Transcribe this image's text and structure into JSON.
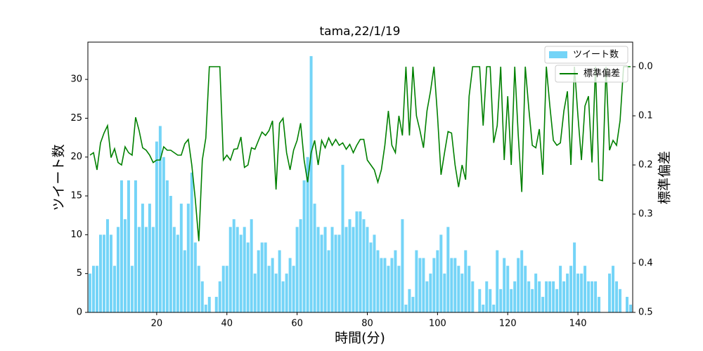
{
  "chart_data": {
    "type": "bar",
    "title": "tama,22/1/19",
    "xlabel": "時間(分)",
    "ylabel": "ツイート数",
    "y2label": "標準偏差",
    "x": [
      1,
      2,
      3,
      4,
      5,
      6,
      7,
      8,
      9,
      10,
      11,
      12,
      13,
      14,
      15,
      16,
      17,
      18,
      19,
      20,
      21,
      22,
      23,
      24,
      25,
      26,
      27,
      28,
      29,
      30,
      31,
      32,
      33,
      34,
      35,
      36,
      37,
      38,
      39,
      40,
      41,
      42,
      43,
      44,
      45,
      46,
      47,
      48,
      49,
      50,
      51,
      52,
      53,
      54,
      55,
      56,
      57,
      58,
      59,
      60,
      61,
      62,
      63,
      64,
      65,
      66,
      67,
      68,
      69,
      70,
      71,
      72,
      73,
      74,
      75,
      76,
      77,
      78,
      79,
      80,
      81,
      82,
      83,
      84,
      85,
      86,
      87,
      88,
      89,
      90,
      91,
      92,
      93,
      94,
      95,
      96,
      97,
      98,
      99,
      100,
      101,
      102,
      103,
      104,
      105,
      106,
      107,
      108,
      109,
      110,
      111,
      112,
      113,
      114,
      115,
      116,
      117,
      118,
      119,
      120,
      121,
      122,
      123,
      124,
      125,
      126,
      127,
      128,
      129,
      130,
      131,
      132,
      133,
      134,
      135,
      136,
      137,
      138,
      139,
      140,
      141,
      142,
      143,
      144,
      145,
      146,
      147,
      148,
      149,
      150,
      151,
      152,
      153,
      154,
      155
    ],
    "series": [
      {
        "name": "ツイート数",
        "type": "bar",
        "color": "#74d4f7",
        "values": [
          5,
          6,
          6,
          10,
          10,
          12,
          10,
          6,
          11,
          17,
          12,
          17,
          6,
          17,
          11,
          14,
          11,
          14,
          11,
          22,
          24,
          20,
          17,
          15,
          11,
          10,
          14,
          8,
          14,
          18,
          9,
          6,
          4,
          1,
          2,
          0,
          2,
          4,
          6,
          6,
          11,
          12,
          11,
          10,
          11,
          9,
          12,
          5,
          8,
          9,
          9,
          6,
          7,
          5,
          8,
          4,
          5,
          7,
          6,
          11,
          12,
          17,
          20,
          33,
          14,
          11,
          10,
          11,
          8,
          11,
          10,
          10,
          19,
          11,
          12,
          11,
          13,
          13,
          12,
          11,
          9,
          10,
          8,
          7,
          7,
          6,
          7,
          8,
          6,
          12,
          1,
          3,
          2,
          8,
          7,
          7,
          4,
          5,
          7,
          8,
          10,
          5,
          11,
          7,
          7,
          6,
          5,
          8,
          6,
          4,
          0,
          3,
          1,
          4,
          3,
          1,
          8,
          3,
          7,
          6,
          3,
          4,
          7,
          8,
          6,
          4,
          3,
          5,
          4,
          2,
          4,
          4,
          4,
          3,
          6,
          4,
          5,
          6,
          9,
          5,
          5,
          6,
          4,
          4,
          4,
          2,
          0,
          0,
          5,
          6,
          4,
          3,
          0,
          2,
          1
        ]
      },
      {
        "name": "標準偏差",
        "type": "line",
        "axis": "y2",
        "color": "#008000",
        "values": [
          0.18,
          0.175,
          0.21,
          0.155,
          0.135,
          0.12,
          0.185,
          0.167,
          0.195,
          0.2,
          0.163,
          0.175,
          0.18,
          0.103,
          0.13,
          0.165,
          0.17,
          0.18,
          0.195,
          0.19,
          0.19,
          0.163,
          0.17,
          0.17,
          0.175,
          0.18,
          0.18,
          0.157,
          0.148,
          0.2,
          0.27,
          0.355,
          0.19,
          0.145,
          0,
          0,
          0,
          0,
          0.19,
          0.18,
          0.19,
          0.168,
          0.167,
          0.143,
          0.205,
          0.2,
          0.165,
          0.168,
          0.15,
          0.133,
          0.14,
          0.13,
          0.11,
          0.25,
          0.115,
          0.105,
          0.175,
          0.21,
          0.17,
          0.15,
          0.115,
          0.19,
          0.235,
          0.175,
          0.15,
          0.2,
          0.15,
          0.165,
          0.145,
          0.16,
          0.148,
          0.16,
          0.155,
          0.168,
          0.158,
          0.175,
          0.16,
          0.148,
          0.148,
          0.19,
          0.2,
          0.21,
          0.235,
          0.21,
          0.16,
          0.09,
          0.16,
          0.175,
          0.1,
          0.14,
          0,
          0.14,
          0,
          0.1,
          0.13,
          0.165,
          0.09,
          0.05,
          0,
          0.1,
          0.22,
          0.175,
          0.132,
          0.135,
          0.2,
          0.245,
          0.2,
          0.23,
          0.06,
          0,
          0,
          0,
          0.12,
          0,
          0,
          0.155,
          0.12,
          0,
          0.19,
          0.06,
          0.2,
          0,
          0.14,
          0.255,
          0,
          0.085,
          0.16,
          0.165,
          0.127,
          0.22,
          0,
          0.08,
          0.15,
          0.16,
          0.155,
          0.09,
          0.05,
          0.2,
          0,
          0.1,
          0.19,
          0.08,
          0.06,
          0.195,
          0,
          0.23,
          0.232,
          0,
          0.17,
          0.15,
          0.16,
          0.11,
          0,
          0,
          0
        ]
      }
    ],
    "xlim": [
      0.4,
      155.6
    ],
    "xticks": [
      20,
      40,
      60,
      80,
      100,
      120,
      140
    ],
    "ylim": [
      0,
      34.8
    ],
    "yticks": [
      0,
      5,
      10,
      15,
      20,
      25,
      30
    ],
    "y2lim": [
      0.5,
      -0.05
    ],
    "y2ticks": [
      {
        "value": 0,
        "label": "0.0"
      },
      0.1,
      0.2,
      0.3,
      0.4,
      0.5
    ]
  }
}
